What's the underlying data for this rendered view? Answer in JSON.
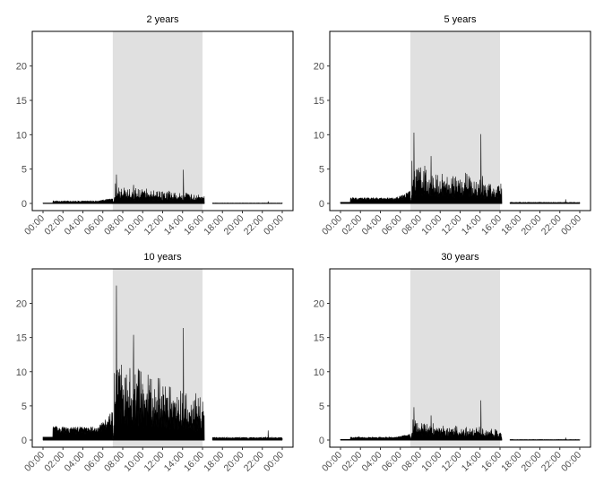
{
  "chart_data": [
    {
      "type": "area",
      "title": "2 years",
      "ylim": [
        0,
        24
      ],
      "yticks": [
        0,
        5,
        10,
        15,
        20
      ],
      "x_ticks": [
        "00:00",
        "02:00",
        "04:00",
        "06:00",
        "08:00",
        "10:00",
        "12:00",
        "14:00",
        "16:00",
        "18:00",
        "20:00",
        "22:00",
        "00:00"
      ],
      "shaded_interval": [
        "07:00",
        "16:00"
      ],
      "gap_interval": [
        "16:12",
        "17:00"
      ],
      "series": [
        {
          "values_note_free": true,
          "baseline": 0.1,
          "morning": 0.25,
          "day_level": 1.3,
          "evening": 0.05,
          "peaks": [
            [
              "07:22",
              4.2
            ],
            [
              "07:16",
              2.9
            ],
            [
              "07:35",
              2.3
            ],
            [
              "08:30",
              2.0
            ],
            [
              "09:05",
              2.7
            ],
            [
              "11:40",
              1.8
            ],
            [
              "14:05",
              4.9
            ],
            [
              "16:02",
              0.8
            ],
            [
              "22:35",
              0.3
            ]
          ]
        }
      ]
    },
    {
      "type": "area",
      "title": "5 years",
      "ylim": [
        0,
        24
      ],
      "yticks": [
        0,
        5,
        10,
        15,
        20
      ],
      "x_ticks": [
        "00:00",
        "02:00",
        "04:00",
        "06:00",
        "08:00",
        "10:00",
        "12:00",
        "14:00",
        "16:00",
        "18:00",
        "20:00",
        "22:00",
        "00:00"
      ],
      "shaded_interval": [
        "07:00",
        "16:00"
      ],
      "gap_interval": [
        "16:12",
        "17:00"
      ],
      "series": [
        {
          "values_note_free": true,
          "baseline": 0.3,
          "morning": 0.6,
          "day_level": 3.0,
          "evening": 0.12,
          "peaks": [
            [
              "07:10",
              6.2
            ],
            [
              "07:22",
              10.3
            ],
            [
              "07:40",
              5.0
            ],
            [
              "08:30",
              4.1
            ],
            [
              "09:05",
              6.9
            ],
            [
              "11:40",
              3.3
            ],
            [
              "14:05",
              10.1
            ],
            [
              "16:02",
              1.3
            ],
            [
              "22:35",
              0.6
            ]
          ]
        }
      ]
    },
    {
      "type": "area",
      "title": "10 years",
      "ylim": [
        0,
        24
      ],
      "yticks": [
        0,
        5,
        10,
        15,
        20
      ],
      "x_ticks": [
        "00:00",
        "02:00",
        "04:00",
        "06:00",
        "08:00",
        "10:00",
        "12:00",
        "14:00",
        "16:00",
        "18:00",
        "20:00",
        "22:00",
        "00:00"
      ],
      "shaded_interval": [
        "07:00",
        "16:00"
      ],
      "gap_interval": [
        "16:12",
        "17:00"
      ],
      "series": [
        {
          "values_note_free": true,
          "baseline": 0.7,
          "morning": 1.4,
          "day_level": 6.0,
          "evening": 0.3,
          "peaks": [
            [
              "01:15",
              2.0
            ],
            [
              "07:10",
              9.8
            ],
            [
              "07:22",
              22.6
            ],
            [
              "07:40",
              8.5
            ],
            [
              "08:30",
              7.3
            ],
            [
              "09:05",
              15.4
            ],
            [
              "11:40",
              6.5
            ],
            [
              "14:05",
              16.4
            ],
            [
              "16:02",
              2.0
            ],
            [
              "22:35",
              1.4
            ]
          ]
        }
      ]
    },
    {
      "type": "area",
      "title": "30 years",
      "ylim": [
        0,
        24
      ],
      "yticks": [
        0,
        5,
        10,
        15,
        20
      ],
      "x_ticks": [
        "00:00",
        "02:00",
        "04:00",
        "06:00",
        "08:00",
        "10:00",
        "12:00",
        "14:00",
        "16:00",
        "18:00",
        "20:00",
        "22:00",
        "00:00"
      ],
      "shaded_interval": [
        "07:00",
        "16:00"
      ],
      "gap_interval": [
        "16:12",
        "17:00"
      ],
      "series": [
        {
          "values_note_free": true,
          "baseline": 0.15,
          "morning": 0.3,
          "day_level": 1.5,
          "evening": 0.06,
          "peaks": [
            [
              "07:22",
              4.8
            ],
            [
              "07:16",
              3.0
            ],
            [
              "07:35",
              2.4
            ],
            [
              "08:30",
              2.2
            ],
            [
              "09:05",
              3.6
            ],
            [
              "11:40",
              2.0
            ],
            [
              "14:05",
              5.8
            ],
            [
              "16:02",
              0.9
            ],
            [
              "22:35",
              0.35
            ]
          ]
        }
      ]
    }
  ],
  "style": {
    "fill": "#000000",
    "shade": "#e0e0e0",
    "frame": "#000000"
  }
}
